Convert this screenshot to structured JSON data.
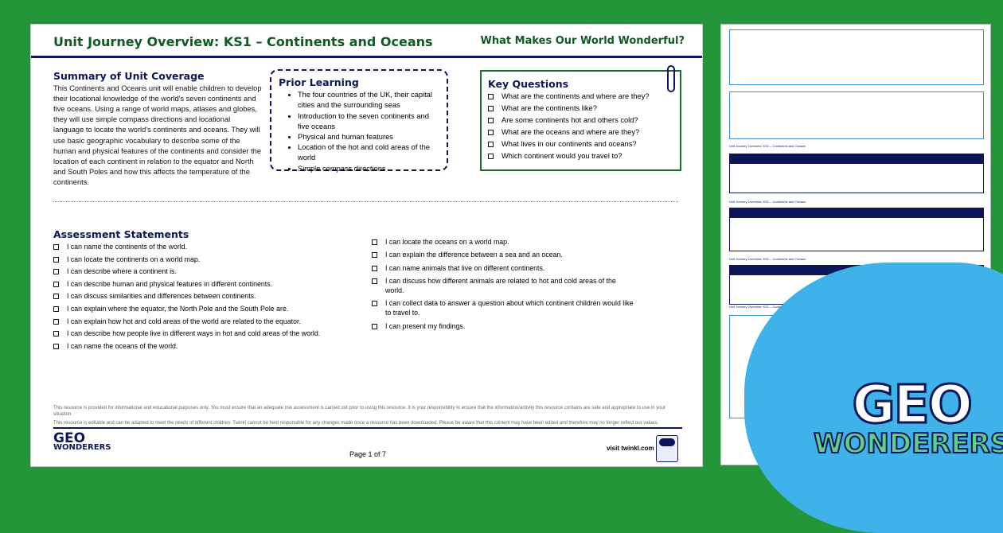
{
  "header": {
    "title": "Unit Journey Overview: KS1 – Continents and Oceans",
    "subtitle": "What Makes Our World Wonderful?"
  },
  "summary": {
    "heading": "Summary of Unit Coverage",
    "text": "This Continents and Oceans unit will enable children to develop their locational knowledge of the world's seven continents and five oceans. Using a range of world maps, atlases and globes, they will use simple compass directions and locational language to locate the world's continents and oceans. They will use basic geographic vocabulary to describe some of the human and physical features of the continents and consider the location of each continent in relation to the equator and North and South Poles and how this affects the temperature of the continents."
  },
  "prior": {
    "heading": "Prior Learning",
    "items": [
      "The four countries of the UK, their capital cities and the surrounding seas",
      "Introduction to the seven continents and five oceans",
      "Physical and human features",
      "Location of the hot and cold areas of the world",
      "Simple compass directions"
    ]
  },
  "key_questions": {
    "heading": "Key Questions",
    "items": [
      "What are the continents and where are they?",
      "What are the continents like?",
      "Are some continents hot and others cold?",
      "What are the oceans and where are they?",
      "What lives in our continents and oceans?",
      "Which continent would you travel to?"
    ]
  },
  "assessment": {
    "heading": "Assessment Statements",
    "left": [
      "I can name the continents of the world.",
      "I can locate the continents on a world map.",
      "I can describe where a continent is.",
      "I can describe human and physical features in different continents.",
      "I can discuss similarities and differences between continents.",
      "I can explain where the equator, the North Pole and the South Pole are.",
      "I can explain how hot and cold areas of the world are related to the equator.",
      "I can describe how people live in different ways in hot and cold areas of the world.",
      "I can name the oceans of the world."
    ],
    "right": [
      "I can locate the oceans on a world map.",
      "I can explain the difference between a sea and an ocean.",
      "I can name animals that live on different continents.",
      "I can discuss how different animals are related to hot and cold areas of the world.",
      "I can collect data to answer a question about which continent children would like to travel to.",
      "I can present my findings."
    ]
  },
  "disclaimer": [
    "This resource is provided for informational and educational purposes only. You must ensure that an adequate risk assessment is carried out prior to using this resource. It is your responsibility to ensure that the information/activity this resource contains are safe and appropriate to use in your situation.",
    "This resource is editable and can be adapted to meet the needs of different children. Twinkl cannot be held responsible for any changes made once a resource has been downloaded. Please be aware that this content may have been edited and therefore may no longer reflect our values."
  ],
  "footer": {
    "logo_top": "GEO",
    "logo_bottom": "WONDERERS",
    "page": "Page 1 of 7",
    "visit": "visit twinkl.com"
  },
  "thumb_header": "Unit Journey Overview: KS1 – Continents and Oceans",
  "brand_logo": {
    "top": "GEO",
    "bottom": "WONDERERS"
  },
  "colors": {
    "background": "#23963a",
    "navy": "#0d1659",
    "green_heading": "#0f5a22",
    "blob": "#3fb3e9"
  }
}
